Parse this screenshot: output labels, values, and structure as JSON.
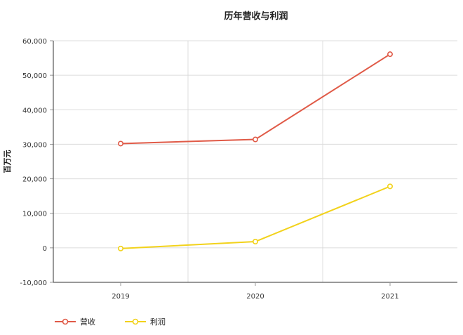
{
  "chart_data": {
    "type": "line",
    "title": "历年营收与利润",
    "xlabel": "",
    "ylabel": "百万元",
    "categories": [
      "2019",
      "2020",
      "2021"
    ],
    "ylim": [
      -10000,
      60000
    ],
    "yticks": [
      "-10,000",
      "0",
      "10,000",
      "20,000",
      "30,000",
      "40,000",
      "50,000",
      "60,000"
    ],
    "grid": true,
    "legend_position": "bottom-left",
    "series": [
      {
        "name": "营收",
        "color": "#e05a47",
        "values": [
          30200,
          31400,
          56100
        ]
      },
      {
        "name": "利润",
        "color": "#f2d21b",
        "values": [
          -200,
          1800,
          17800
        ]
      }
    ]
  }
}
